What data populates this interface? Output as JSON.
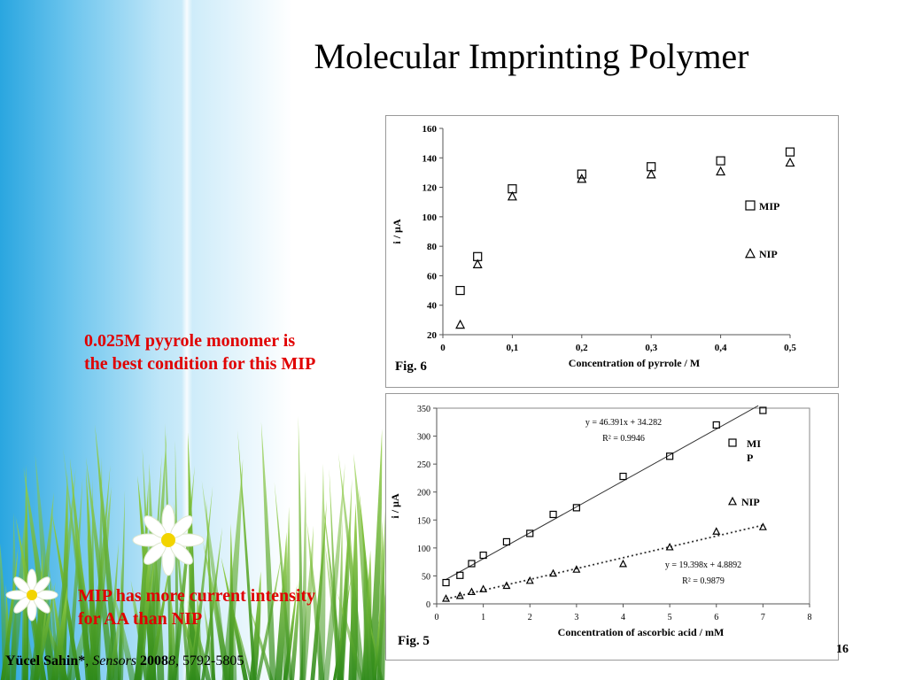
{
  "slide": {
    "title": "Molecular Imprinting Polymer",
    "note_top": [
      "0.025M pyyrole monomer is",
      "the best condition for this MIP"
    ],
    "note_bottom": [
      "MIP has more current intensity",
      "for AA than NIP"
    ],
    "citation": {
      "author": "Yücel Sahin*",
      "sep": ", ",
      "journal": "Sensors",
      "year": "2008",
      "volume": "8,",
      "pages": "5792-5805"
    },
    "page_number": "16",
    "colors": {
      "note": "#e00000",
      "sky": "#2aa6e0",
      "grass": "#4caf2a"
    }
  },
  "chart_data": [
    {
      "id": "fig6",
      "type": "scatter",
      "fig_label": "Fig. 6",
      "xlabel": "Concentration of pyrrole / M",
      "ylabel": "i / µA",
      "xlim": [
        0,
        0.5
      ],
      "ylim": [
        20,
        160
      ],
      "x_ticks": [
        "0",
        "0,1",
        "0,2",
        "0,3",
        "0,4",
        "0,5"
      ],
      "x_tick_values": [
        0,
        0.1,
        0.2,
        0.3,
        0.4,
        0.5
      ],
      "y_ticks": [
        20,
        40,
        60,
        80,
        100,
        120,
        140,
        160
      ],
      "legend_position": "right",
      "series": [
        {
          "name": "MIP",
          "marker": "square",
          "x": [
            0.025,
            0.05,
            0.1,
            0.2,
            0.3,
            0.4,
            0.5
          ],
          "y": [
            50,
            73,
            119,
            129,
            134,
            138,
            144
          ]
        },
        {
          "name": "NIP",
          "marker": "triangle",
          "x": [
            0.025,
            0.05,
            0.1,
            0.2,
            0.3,
            0.4,
            0.5
          ],
          "y": [
            27,
            68,
            114,
            126,
            129,
            131,
            137
          ]
        }
      ]
    },
    {
      "id": "fig5",
      "type": "scatter",
      "fig_label": "Fig. 5",
      "xlabel": "Concentration of ascorbic acid / mM",
      "ylabel": "i / µA",
      "xlim": [
        0,
        8
      ],
      "ylim": [
        0,
        350
      ],
      "x_ticks": [
        0,
        1,
        2,
        3,
        4,
        5,
        6,
        7,
        8
      ],
      "y_ticks": [
        0,
        50,
        100,
        150,
        200,
        250,
        300,
        350
      ],
      "legend_position": "right",
      "series": [
        {
          "name": "MI P",
          "marker": "square",
          "x": [
            0.2,
            0.5,
            0.75,
            1,
            1.5,
            2,
            2.5,
            3,
            4,
            5,
            6,
            7
          ],
          "y": [
            38,
            51,
            72,
            87,
            111,
            126,
            160,
            172,
            228,
            264,
            320,
            346
          ],
          "fit": {
            "slope": 46.391,
            "intercept": 34.282,
            "x_range": [
              0.2,
              6.9
            ],
            "equation": "y = 46.391x + 34.282",
            "r2": "R² = 0.9946",
            "style": "solid"
          }
        },
        {
          "name": "NIP",
          "marker": "triangle",
          "x": [
            0.2,
            0.5,
            0.75,
            1,
            1.5,
            2,
            2.5,
            3,
            4,
            5,
            6,
            7
          ],
          "y": [
            10,
            15,
            22,
            27,
            33,
            42,
            55,
            62,
            72,
            102,
            130,
            138
          ],
          "fit": {
            "slope": 19.398,
            "intercept": 4.8892,
            "x_range": [
              0.2,
              7.0
            ],
            "equation": "y = 19.398x + 4.8892",
            "r2": "R² = 0.9879",
            "style": "dotted"
          }
        }
      ]
    }
  ]
}
